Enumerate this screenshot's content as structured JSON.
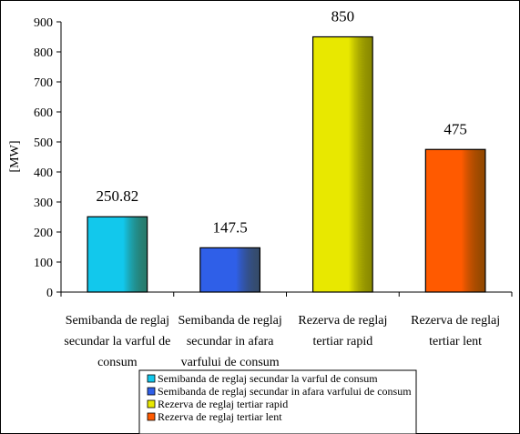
{
  "chart_data": {
    "type": "bar",
    "title": "",
    "xlabel": "",
    "ylabel": "[MW]",
    "ylim": [
      0,
      900
    ],
    "yticks": [
      0,
      100,
      200,
      300,
      400,
      500,
      600,
      700,
      800,
      900
    ],
    "grid": false,
    "legend_position": "bottom",
    "categories": [
      "Semibanda de reglaj secundar la varful de consum",
      "Semibanda de reglaj secundar in afara varfului de consum",
      "Rezerva de reglaj tertiar rapid",
      "Rezerva de reglaj tertiar lent"
    ],
    "category_labels": [
      [
        "Semibanda de reglaj",
        "secundar la varful de",
        "consum"
      ],
      [
        "Semibanda de reglaj",
        "secundar in afara",
        "varfului de consum"
      ],
      [
        "Rezerva de reglaj",
        "tertiar rapid"
      ],
      [
        "Rezerva de reglaj",
        "tertiar lent"
      ]
    ],
    "values": [
      250.82,
      147.5,
      850,
      475
    ],
    "value_labels": [
      "250.82",
      "147.5",
      "850",
      "475"
    ],
    "colors": [
      "#12c8ec",
      "#2f5fe8",
      "#e8e800",
      "#ff5a00"
    ],
    "legend": [
      "Semibanda de reglaj secundar la varful de consum",
      "Semibanda de reglaj secundar in afara varfului de consum",
      "Rezerva de reglaj tertiar rapid",
      "Rezerva de reglaj tertiar lent"
    ]
  }
}
